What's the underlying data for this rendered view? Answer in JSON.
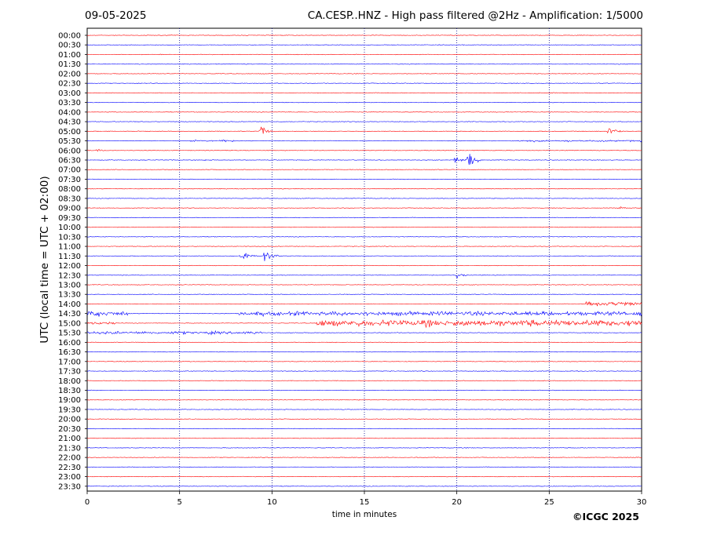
{
  "header": {
    "date": "09-05-2025",
    "title": "CA.CESP..HNZ - High pass filtered @2Hz - Amplification: 1/5000"
  },
  "footer": {
    "copyright": "©ICGC 2025"
  },
  "chart_data": {
    "type": "line",
    "title": "CA.CESP..HNZ - High pass filtered @2Hz - Amplification: 1/5000",
    "xlabel": "time in minutes",
    "ylabel": "UTC (local time = UTC + 02:00)",
    "xlim": [
      0,
      30
    ],
    "xticks": [
      0,
      5,
      10,
      15,
      20,
      25,
      30
    ],
    "vertical_gridlines_at": [
      5,
      10,
      15,
      20,
      25
    ],
    "grid": "vertical dotted lines only",
    "colors": {
      "red": "#ff0000",
      "blue": "#0000ff"
    },
    "trace_colors_alternate": [
      "red",
      "blue"
    ],
    "rows": [
      "00:00",
      "00:30",
      "01:00",
      "01:30",
      "02:00",
      "02:30",
      "03:00",
      "03:30",
      "04:00",
      "04:30",
      "05:00",
      "05:30",
      "06:00",
      "06:30",
      "07:00",
      "07:30",
      "08:00",
      "08:30",
      "09:00",
      "09:30",
      "10:00",
      "10:30",
      "11:00",
      "11:30",
      "12:00",
      "12:30",
      "13:00",
      "13:30",
      "14:00",
      "14:30",
      "15:00",
      "15:30",
      "16:00",
      "16:30",
      "17:00",
      "17:30",
      "18:00",
      "18:30",
      "19:00",
      "19:30",
      "20:00",
      "20:30",
      "21:00",
      "21:30",
      "22:00",
      "22:30",
      "23:00",
      "23:30"
    ],
    "events": [
      {
        "row": "05:00",
        "minute": 9.4,
        "amplitude": 1.0
      },
      {
        "row": "05:00",
        "minute": 28.2,
        "amplitude": 1.1
      },
      {
        "row": "05:30",
        "minute": 7.3,
        "amplitude": 0.35
      },
      {
        "row": "06:00",
        "minute": 0.5,
        "amplitude": 0.3
      },
      {
        "row": "06:30",
        "minute": 6.3,
        "amplitude": 0.15
      },
      {
        "row": "06:30",
        "minute": 19.9,
        "amplitude": 0.7
      },
      {
        "row": "06:30",
        "minute": 20.6,
        "amplitude": 1.8
      },
      {
        "row": "09:00",
        "minute": 28.8,
        "amplitude": 0.4
      },
      {
        "row": "11:30",
        "minute": 8.3,
        "amplitude": 1.1
      },
      {
        "row": "11:30",
        "minute": 9.6,
        "amplitude": 1.6
      },
      {
        "row": "12:30",
        "minute": 20.0,
        "amplitude": 0.5
      }
    ],
    "noisy_segments": [
      {
        "row": "05:30",
        "from": 5.4,
        "to": 8.0,
        "level": 0.12
      },
      {
        "row": "05:30",
        "from": 22.8,
        "to": 30,
        "level": 0.12
      },
      {
        "row": "14:00",
        "from": 27.0,
        "to": 30,
        "level": 0.3
      },
      {
        "row": "14:30",
        "from": 0,
        "to": 2.2,
        "level": 0.35
      },
      {
        "row": "14:30",
        "from": 8.2,
        "to": 30,
        "level": 0.3
      },
      {
        "row": "15:00",
        "from": 0,
        "to": 1.5,
        "level": 0.2
      },
      {
        "row": "15:00",
        "from": 12.4,
        "to": 30,
        "level": 0.45
      },
      {
        "row": "15:30",
        "from": 0,
        "to": 9.5,
        "level": 0.2
      }
    ]
  }
}
